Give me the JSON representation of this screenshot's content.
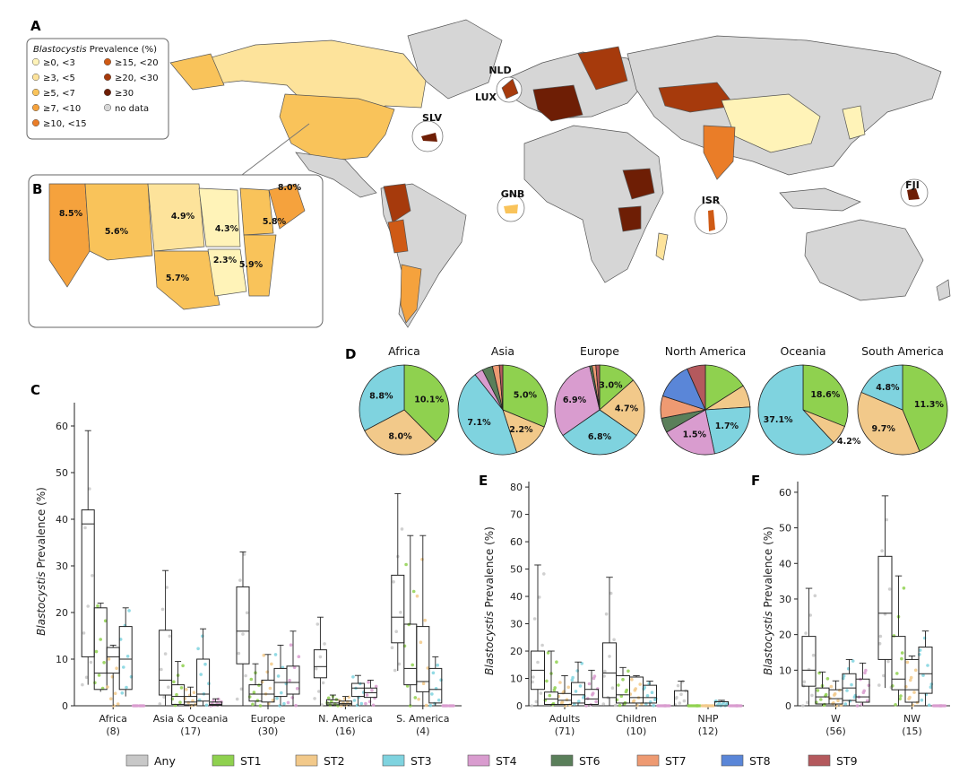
{
  "colors": {
    "Any": "#c8c8c8",
    "ST1": "#8fd14f",
    "ST2": "#f2c98a",
    "ST3": "#7fd3df",
    "ST4": "#d99ccf",
    "ST6": "#5a7f5a",
    "ST7": "#ee9a72",
    "ST8": "#5a86d8",
    "ST9": "#b4595d"
  },
  "legend": {
    "items": [
      "Any",
      "ST1",
      "ST2",
      "ST3",
      "ST4",
      "ST6",
      "ST7",
      "ST8",
      "ST9"
    ]
  },
  "panelA": {
    "letter": "A",
    "legend_title_italic": "Blastocystis",
    "legend_title_rest": " Prevalence (%)",
    "legend_items": [
      {
        "label": "≥0, <3",
        "color": "#fff3b8"
      },
      {
        "label": "≥3, <5",
        "color": "#fde39b"
      },
      {
        "label": "≥5, <7",
        "color": "#f9c35a"
      },
      {
        "label": "≥7, <10",
        "color": "#f5a23d"
      },
      {
        "label": "≥10, <15",
        "color": "#ea7d28"
      },
      {
        "label": "≥15, <20",
        "color": "#cf5a15"
      },
      {
        "label": "≥20, <30",
        "color": "#a63a0c"
      },
      {
        "label": "≥30",
        "color": "#6e1e05"
      },
      {
        "label": "no data",
        "color": "#d6d6d6"
      }
    ],
    "country_labels": [
      "NLD",
      "LUX",
      "SLV",
      "GNB",
      "ISR",
      "FJI"
    ]
  },
  "panelB": {
    "letter": "B",
    "state_labels": [
      "8.0%",
      "8.5%",
      "5.6%",
      "4.9%",
      "4.3%",
      "5.8%",
      "2.3%",
      "5.9%",
      "5.7%"
    ]
  },
  "panelC": {
    "letter": "C",
    "ylabel_italic": "Blastocystis",
    "ylabel_rest": " Prevalence (%)"
  },
  "panelD": {
    "letter": "D"
  },
  "panelE": {
    "letter": "E",
    "ylabel_italic": "Blastocystis",
    "ylabel_rest": " Prevalence (%)"
  },
  "panelF": {
    "letter": "F",
    "ylabel_italic": "Blastocystis",
    "ylabel_rest": " Prevalence (%)"
  },
  "chart_data": [
    {
      "type": "map",
      "panel": "A",
      "title": "Blastocystis Prevalence (%)",
      "bins": [
        "≥0, <3",
        "≥3, <5",
        "≥5, <7",
        "≥7, <10",
        "≥10, <15",
        "≥15, <20",
        "≥20, <30",
        "≥30",
        "no data"
      ],
      "labelled_countries": [
        "NLD",
        "LUX",
        "SLV",
        "GNB",
        "ISR",
        "FJI"
      ]
    },
    {
      "type": "map",
      "panel": "B",
      "labels": [
        "8.0%",
        "8.5%",
        "5.6%",
        "4.9%",
        "4.3%",
        "5.8%",
        "2.3%",
        "5.9%",
        "5.7%"
      ]
    },
    {
      "type": "box",
      "panel": "C",
      "ylabel": "Blastocystis Prevalence (%)",
      "ylim": [
        0,
        65
      ],
      "yticks": [
        0,
        10,
        20,
        30,
        40,
        50,
        60
      ],
      "categories": [
        "Africa",
        "Asia & Oceania",
        "Europe",
        "N. America",
        "S. America"
      ],
      "counts": [
        "(8)",
        "(17)",
        "(30)",
        "(16)",
        "(4)"
      ],
      "series": [
        {
          "name": "Any",
          "boxes": [
            [
              4.5,
              10.5,
              39.0,
              42.0,
              59.0
            ],
            [
              0,
              2.3,
              5.5,
              16.2,
              29.0
            ],
            [
              0,
              9.0,
              16.0,
              25.5,
              33.0
            ],
            [
              0,
              6.0,
              8.4,
              12.0,
              19.0
            ],
            [
              7.5,
              13.5,
              19.0,
              28.0,
              45.5
            ]
          ]
        },
        {
          "name": "ST1",
          "boxes": [
            [
              3.0,
              3.5,
              7.0,
              21.0,
              22.0
            ],
            [
              0,
              0.3,
              2.0,
              4.5,
              9.5
            ],
            [
              0,
              1.0,
              2.5,
              4.5,
              9.0
            ],
            [
              0,
              0.2,
              0.6,
              1.3,
              2.3
            ],
            [
              0,
              4.5,
              8.0,
              17.5,
              36.5
            ]
          ]
        },
        {
          "name": "ST2",
          "boxes": [
            [
              0,
              7.0,
              10.5,
              12.5,
              13.0
            ],
            [
              0,
              0.2,
              0.8,
              2.0,
              4.0
            ],
            [
              0,
              0.8,
              2.5,
              5.5,
              11.0
            ],
            [
              0,
              0.2,
              0.5,
              1.0,
              2.0
            ],
            [
              0,
              3.0,
              5.2,
              17.0,
              36.5
            ]
          ]
        },
        {
          "name": "ST3",
          "boxes": [
            [
              2.0,
              3.5,
              10.0,
              17.0,
              21.0
            ],
            [
              0,
              1.0,
              2.5,
              10.0,
              16.5
            ],
            [
              0,
              2.0,
              5.0,
              8.0,
              13.0
            ],
            [
              0,
              2.0,
              3.8,
              4.8,
              6.5
            ],
            [
              0,
              0.6,
              3.5,
              8.0,
              10.5
            ]
          ]
        },
        {
          "name": "ST4",
          "boxes": [
            [
              0,
              0,
              0,
              0,
              0
            ],
            [
              0,
              0.1,
              0.3,
              0.8,
              1.5
            ],
            [
              0,
              2.5,
              5.0,
              8.5,
              16.0
            ],
            [
              0,
              1.8,
              2.8,
              3.8,
              5.5
            ],
            [
              0,
              0,
              0,
              0,
              0
            ]
          ]
        }
      ]
    },
    {
      "type": "pie",
      "panel": "D",
      "titles": [
        "Africa",
        "Asia",
        "Europe",
        "North America",
        "Oceania",
        "South America"
      ],
      "pies": [
        {
          "title": "Africa",
          "slices": [
            {
              "name": "ST1",
              "value": 10.1,
              "label": "10.1%"
            },
            {
              "name": "ST2",
              "value": 8.0,
              "label": "8.0%"
            },
            {
              "name": "ST3",
              "value": 8.8,
              "label": "8.8%"
            }
          ]
        },
        {
          "title": "Asia",
          "slices": [
            {
              "name": "ST1",
              "value": 5.0,
              "label": "5.0%"
            },
            {
              "name": "ST2",
              "value": 2.2,
              "label": "2.2%"
            },
            {
              "name": "ST3",
              "value": 7.1,
              "label": "7.1%"
            },
            {
              "name": "ST4",
              "value": 0.5
            },
            {
              "name": "ST6",
              "value": 0.6
            },
            {
              "name": "ST7",
              "value": 0.4
            },
            {
              "name": "ST9",
              "value": 0.2
            }
          ]
        },
        {
          "title": "Europe",
          "slices": [
            {
              "name": "ST1",
              "value": 3.0,
              "label": "3.0%"
            },
            {
              "name": "ST2",
              "value": 4.7,
              "label": "4.7%"
            },
            {
              "name": "ST3",
              "value": 6.8,
              "label": "6.8%"
            },
            {
              "name": "ST4",
              "value": 6.9,
              "label": "6.9%"
            },
            {
              "name": "ST6",
              "value": 0.2
            },
            {
              "name": "ST7",
              "value": 0.3
            },
            {
              "name": "ST9",
              "value": 0.3
            }
          ]
        },
        {
          "title": "North America",
          "slices": [
            {
              "name": "ST1",
              "value": 1.2
            },
            {
              "name": "ST2",
              "value": 0.6
            },
            {
              "name": "ST3",
              "value": 1.7,
              "label": "1.7%"
            },
            {
              "name": "ST4",
              "value": 1.5,
              "label": "1.5%"
            },
            {
              "name": "ST6",
              "value": 0.4
            },
            {
              "name": "ST7",
              "value": 0.6
            },
            {
              "name": "ST8",
              "value": 1.0
            },
            {
              "name": "ST9",
              "value": 0.5
            }
          ]
        },
        {
          "title": "Oceania",
          "slices": [
            {
              "name": "ST1",
              "value": 18.6,
              "label": "18.6%"
            },
            {
              "name": "ST2",
              "value": 4.2,
              "label": "4.2%"
            },
            {
              "name": "ST3",
              "value": 37.1,
              "label": "37.1%"
            }
          ]
        },
        {
          "title": "South America",
          "slices": [
            {
              "name": "ST1",
              "value": 11.3,
              "label": "11.3%"
            },
            {
              "name": "ST2",
              "value": 9.7,
              "label": "9.7%"
            },
            {
              "name": "ST3",
              "value": 4.8,
              "label": "4.8%"
            }
          ]
        }
      ]
    },
    {
      "type": "box",
      "panel": "E",
      "ylabel": "Blastocystis Prevalence (%)",
      "ylim": [
        0,
        82
      ],
      "yticks": [
        0,
        10,
        20,
        30,
        40,
        50,
        60,
        70,
        80
      ],
      "categories": [
        "Adults",
        "Children",
        "NHP"
      ],
      "counts": [
        "(71)",
        "(10)",
        "(12)"
      ],
      "series": [
        {
          "name": "Any",
          "boxes": [
            [
              0,
              6.0,
              13.0,
              20.0,
              51.5
            ],
            [
              0,
              3.0,
              12.0,
              23.0,
              47.0
            ],
            [
              0,
              0,
              0,
              5.5,
              9.0
            ]
          ]
        },
        {
          "name": "ST1",
          "boxes": [
            [
              0,
              0.5,
              2.5,
              5.0,
              20.0
            ],
            [
              0,
              1.0,
              4.0,
              11.0,
              14.0
            ],
            [
              0,
              0,
              0,
              0,
              0
            ]
          ]
        },
        {
          "name": "ST2",
          "boxes": [
            [
              0,
              0.5,
              2.0,
              4.5,
              11.0
            ],
            [
              0,
              1.0,
              3.0,
              10.5,
              11.0
            ],
            [
              0,
              0,
              0,
              0,
              0
            ]
          ]
        },
        {
          "name": "ST3",
          "boxes": [
            [
              0,
              1.0,
              4.0,
              8.5,
              16.0
            ],
            [
              0,
              1.0,
              3.0,
              7.5,
              9.0
            ],
            [
              0,
              0,
              0,
              1.5,
              2.0
            ]
          ]
        },
        {
          "name": "ST4",
          "boxes": [
            [
              0,
              0.5,
              2.5,
              6.0,
              13.0
            ],
            [
              0,
              0,
              0,
              0,
              0
            ],
            [
              0,
              0,
              0,
              0,
              0
            ]
          ]
        }
      ]
    },
    {
      "type": "box",
      "panel": "F",
      "ylabel": "Blastocystis Prevalence (%)",
      "ylim": [
        0,
        63
      ],
      "yticks": [
        0,
        10,
        20,
        30,
        40,
        50,
        60
      ],
      "categories": [
        "W",
        "NW"
      ],
      "counts": [
        "(56)",
        "(15)"
      ],
      "series": [
        {
          "name": "Any",
          "boxes": [
            [
              0,
              5.5,
              10.0,
              19.5,
              33.0
            ],
            [
              5.0,
              13.0,
              26.0,
              42.0,
              59.0
            ]
          ]
        },
        {
          "name": "ST1",
          "boxes": [
            [
              0,
              0.5,
              2.5,
              5.0,
              9.5
            ],
            [
              0,
              4.5,
              7.5,
              19.5,
              36.5
            ]
          ]
        },
        {
          "name": "ST2",
          "boxes": [
            [
              0,
              0.5,
              2.0,
              4.5,
              7.0
            ],
            [
              0,
              1.0,
              4.5,
              13.0,
              14.0
            ]
          ]
        },
        {
          "name": "ST3",
          "boxes": [
            [
              0,
              1.5,
              5.0,
              9.0,
              13.0
            ],
            [
              0,
              3.5,
              9.0,
              16.5,
              21.0
            ]
          ]
        },
        {
          "name": "ST4",
          "boxes": [
            [
              0,
              1.0,
              2.5,
              7.5,
              12.0
            ],
            [
              0,
              0,
              0,
              0,
              0
            ]
          ]
        }
      ]
    }
  ]
}
